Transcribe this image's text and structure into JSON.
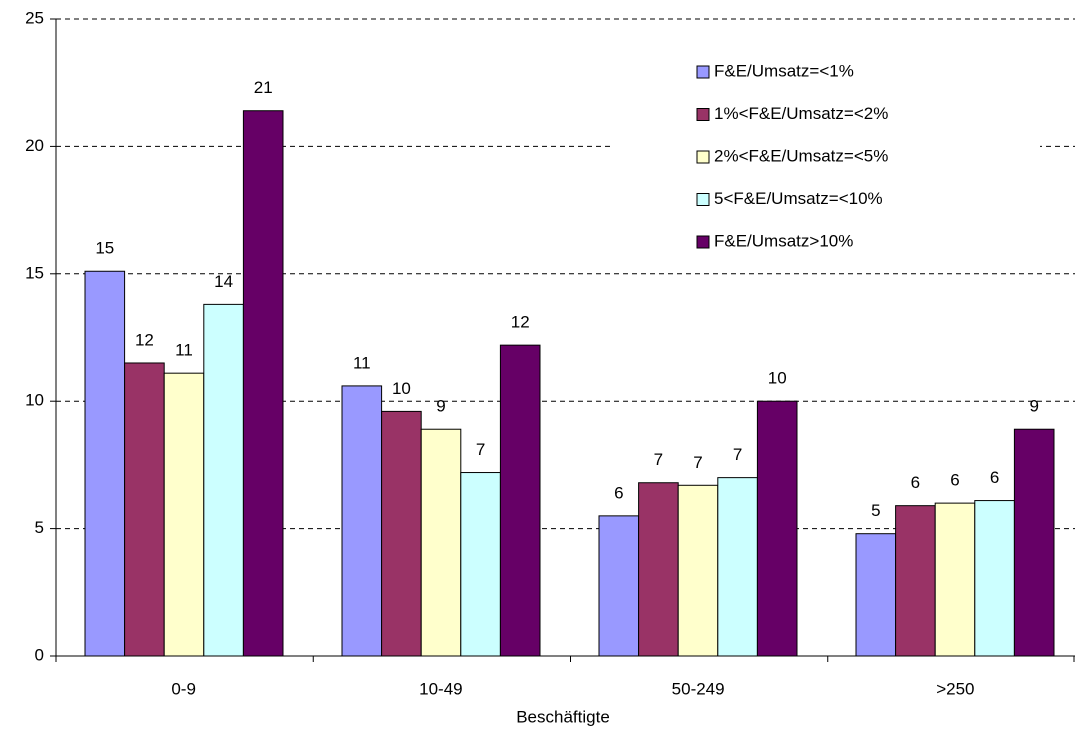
{
  "chart_data": {
    "type": "bar",
    "x_label": "Beschäftigte",
    "categories": [
      "0-9",
      "10-49",
      "50-249",
      ">250"
    ],
    "series": [
      {
        "name": "F&E/Umsatz=<1%",
        "color": "#9999FF",
        "values": [
          15.1,
          10.6,
          5.5,
          4.8
        ],
        "value_labels": [
          "15",
          "11",
          "6",
          "5"
        ]
      },
      {
        "name": "1%<F&E/Umsatz=<2%",
        "color": "#993366",
        "values": [
          11.5,
          9.6,
          6.8,
          5.9
        ],
        "value_labels": [
          "12",
          "10",
          "7",
          "6"
        ]
      },
      {
        "name": "2%<F&E/Umsatz=<5%",
        "color": "#FFFFCC",
        "values": [
          11.1,
          8.9,
          6.7,
          6.0
        ],
        "value_labels": [
          "11",
          "9",
          "7",
          "6"
        ]
      },
      {
        "name": "5<F&E/Umsatz=<10%",
        "color": "#CCFFFF",
        "values": [
          13.8,
          7.2,
          7.0,
          6.1
        ],
        "value_labels": [
          "14",
          "7",
          "7",
          "6"
        ]
      },
      {
        "name": "F&E/Umsatz>10%",
        "color": "#660066",
        "values": [
          21.4,
          12.2,
          10.0,
          8.9
        ],
        "value_labels": [
          "21",
          "12",
          "10",
          "9"
        ]
      }
    ],
    "ylim": [
      0,
      25
    ],
    "yticks": [
      0,
      5,
      10,
      15,
      20,
      25
    ],
    "grid": true,
    "legend": "upper right"
  }
}
